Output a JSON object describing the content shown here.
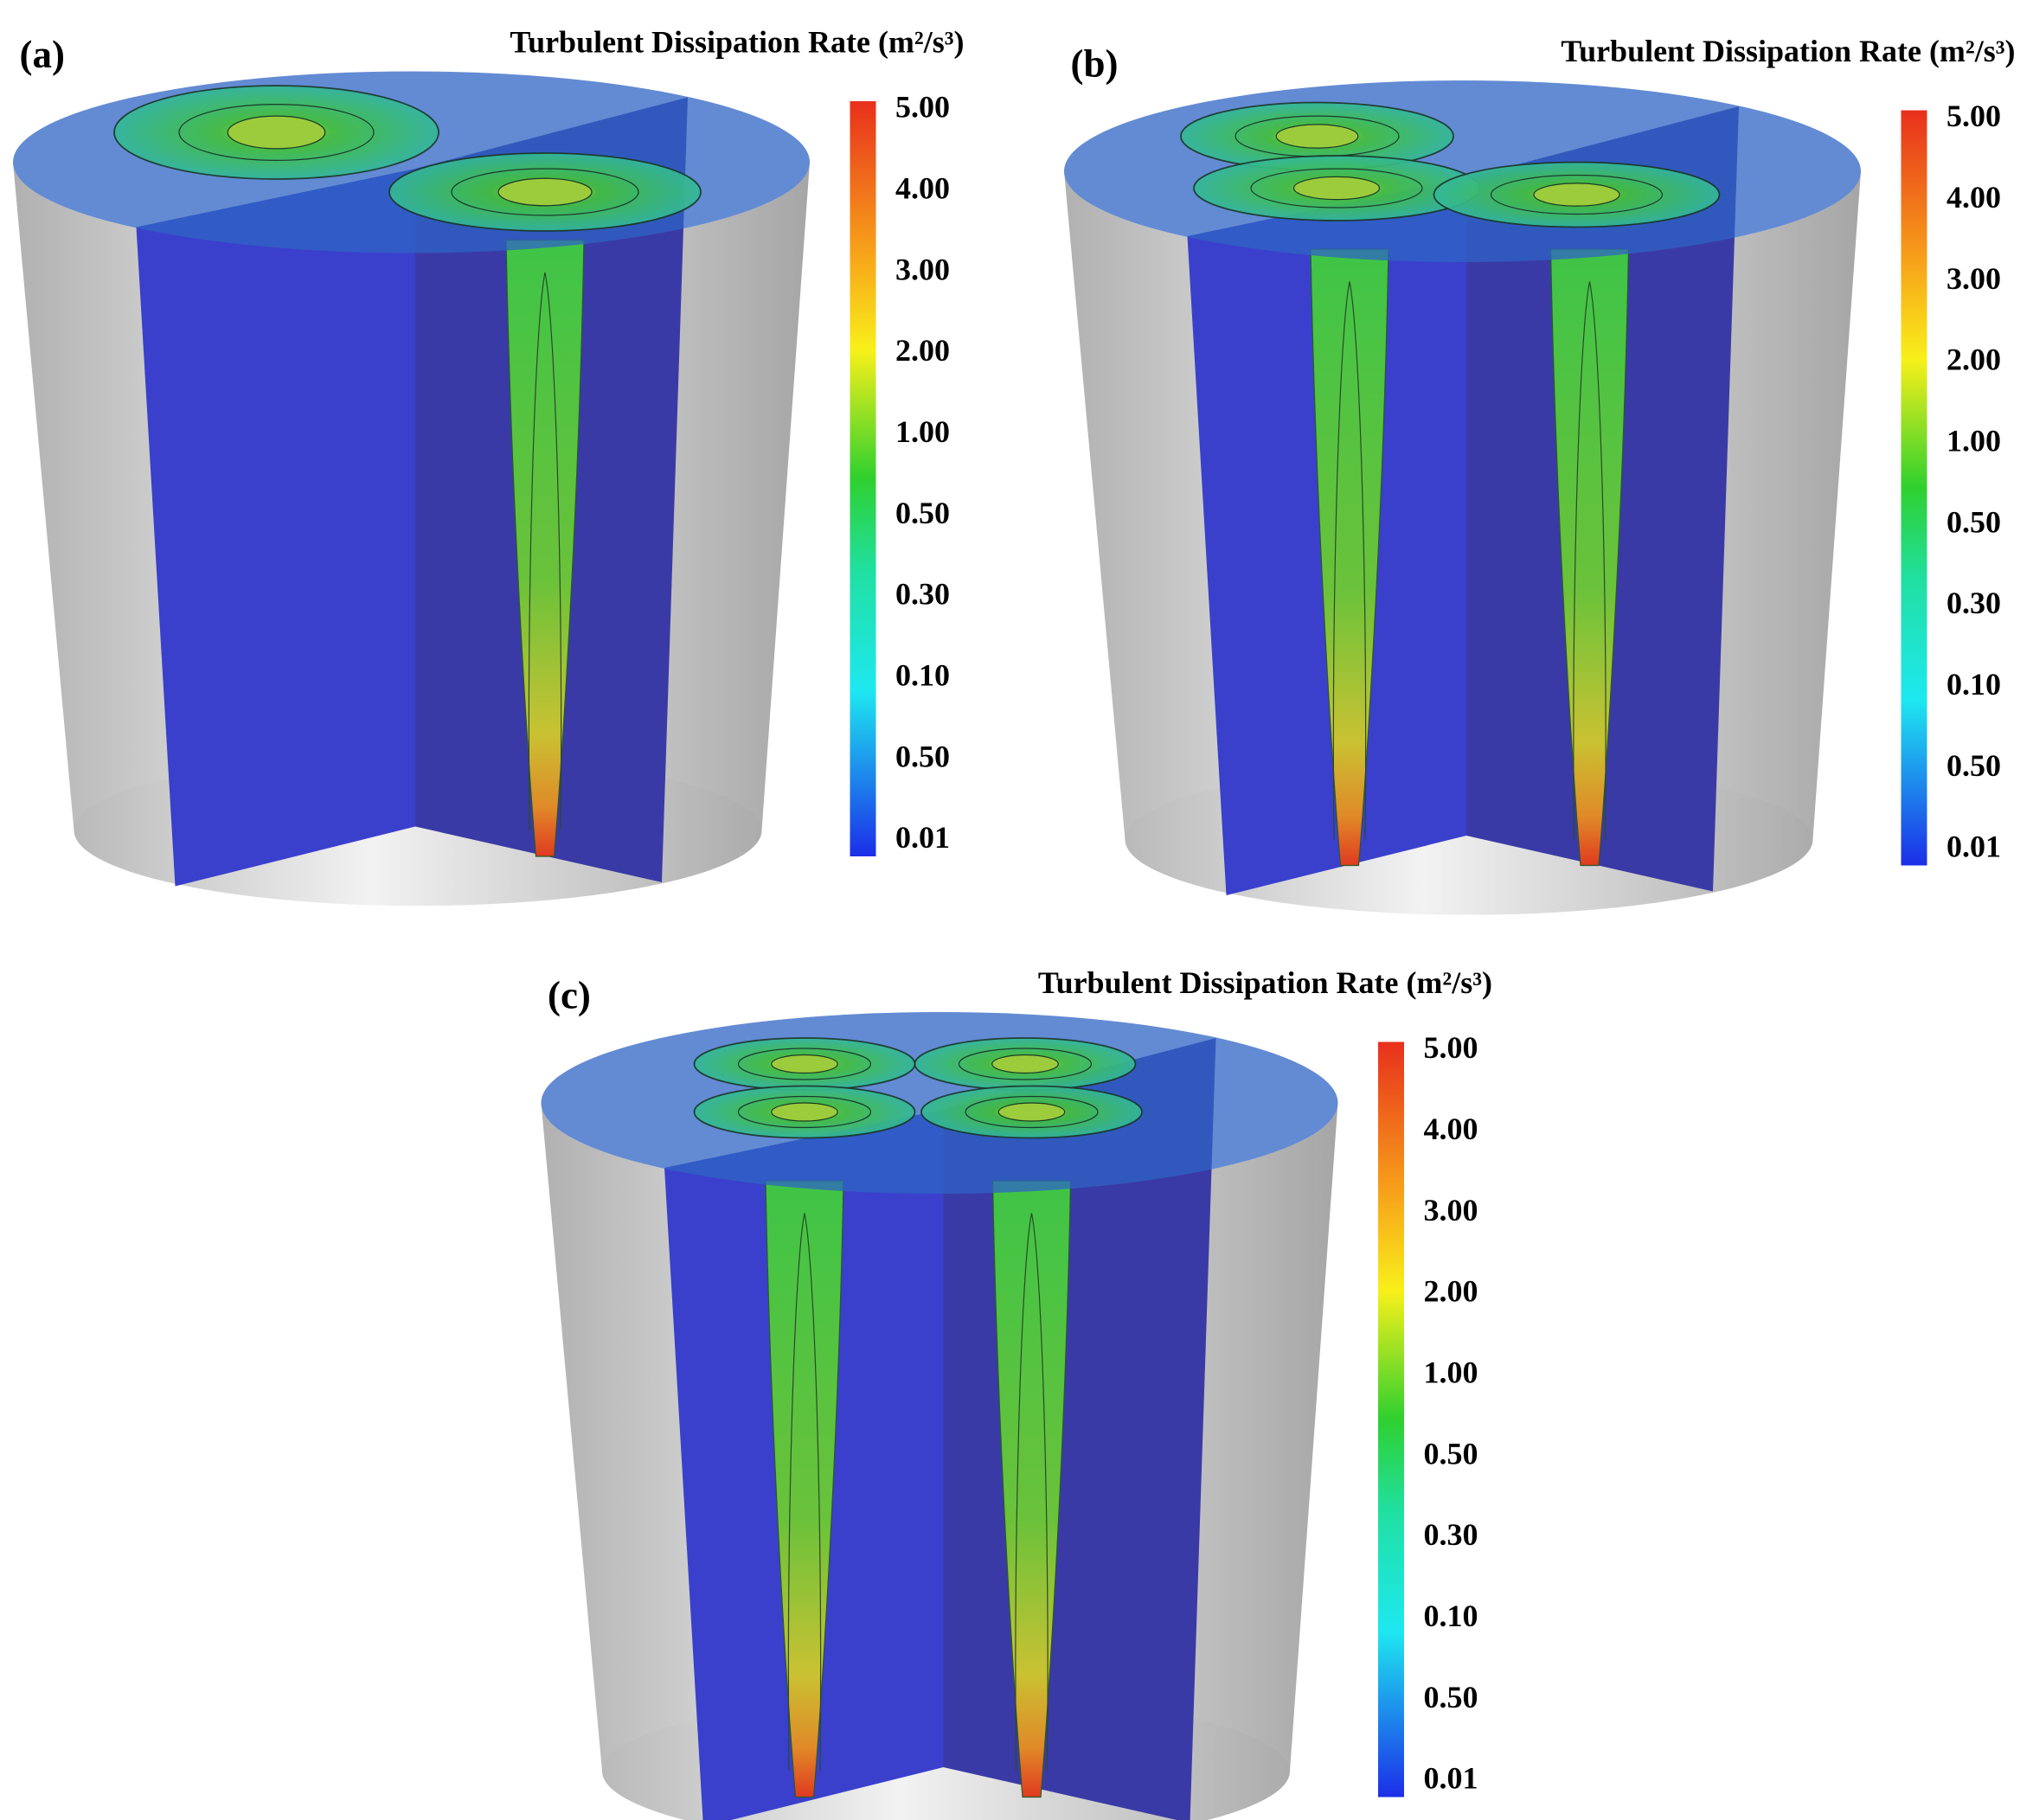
{
  "panels": [
    {
      "label": "(a)",
      "title": "Turbulent Dissipation Rate (m²/s³)",
      "colorbar_labels": [
        "5.00",
        "4.00",
        "3.00",
        "2.00",
        "1.00",
        "0.50",
        "0.30",
        "0.10",
        "0.50",
        "0.01"
      ]
    },
    {
      "label": "(b)",
      "title": "Turbulent Dissipation Rate (m²/s³)",
      "colorbar_labels": [
        "5.00",
        "4.00",
        "3.00",
        "2.00",
        "1.00",
        "0.50",
        "0.30",
        "0.10",
        "0.50",
        "0.01"
      ]
    },
    {
      "label": "(c)",
      "title": "Turbulent Dissipation Rate (m²/s³)",
      "colorbar_labels": [
        "5.00",
        "4.00",
        "3.00",
        "2.00",
        "1.00",
        "0.50",
        "0.30",
        "0.10",
        "0.50",
        "0.01"
      ]
    }
  ]
}
